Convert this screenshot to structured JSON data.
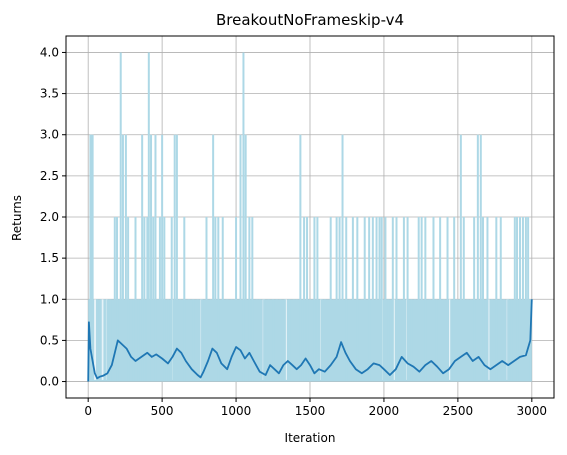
{
  "chart_data": {
    "type": "line",
    "title": "BreakoutNoFrameskip-v4",
    "xlabel": "Iteration",
    "ylabel": "Returns",
    "xlim": [
      -150,
      3150
    ],
    "ylim": [
      -0.2,
      4.2
    ],
    "xticks": [
      0,
      500,
      1000,
      1500,
      2000,
      2500,
      3000
    ],
    "yticks": [
      0.0,
      0.5,
      1.0,
      1.5,
      2.0,
      2.5,
      3.0,
      3.5,
      4.0
    ],
    "xtick_labels": [
      "0",
      "500",
      "1000",
      "1500",
      "2000",
      "2500",
      "3000"
    ],
    "ytick_labels": [
      "0.0",
      "0.5",
      "1.0",
      "1.5",
      "2.0",
      "2.5",
      "3.0",
      "3.5",
      "4.0"
    ],
    "grid": true,
    "colors": {
      "raw": "#add8e6",
      "smooth": "#1f77b4"
    },
    "raw_spikes": [
      [
        15,
        3
      ],
      [
        20,
        3
      ],
      [
        30,
        3
      ],
      [
        60,
        1
      ],
      [
        85,
        1
      ],
      [
        110,
        1
      ],
      [
        130,
        1
      ],
      [
        150,
        1
      ],
      [
        180,
        2
      ],
      [
        195,
        2
      ],
      [
        210,
        1
      ],
      [
        220,
        4
      ],
      [
        235,
        3
      ],
      [
        255,
        3
      ],
      [
        270,
        2
      ],
      [
        290,
        1
      ],
      [
        305,
        1
      ],
      [
        320,
        2
      ],
      [
        340,
        1
      ],
      [
        365,
        3
      ],
      [
        380,
        2
      ],
      [
        400,
        2
      ],
      [
        410,
        4
      ],
      [
        425,
        3
      ],
      [
        440,
        2
      ],
      [
        455,
        3
      ],
      [
        470,
        1
      ],
      [
        485,
        2
      ],
      [
        500,
        3
      ],
      [
        515,
        2
      ],
      [
        540,
        1
      ],
      [
        565,
        2
      ],
      [
        585,
        3
      ],
      [
        600,
        3
      ],
      [
        620,
        1
      ],
      [
        650,
        2
      ],
      [
        680,
        1
      ],
      [
        710,
        1
      ],
      [
        740,
        1
      ],
      [
        770,
        1
      ],
      [
        800,
        2
      ],
      [
        830,
        1
      ],
      [
        845,
        3
      ],
      [
        860,
        2
      ],
      [
        880,
        2
      ],
      [
        910,
        2
      ],
      [
        940,
        1
      ],
      [
        970,
        1
      ],
      [
        990,
        1
      ],
      [
        1000,
        2
      ],
      [
        1030,
        3
      ],
      [
        1050,
        4
      ],
      [
        1065,
        3
      ],
      [
        1090,
        2
      ],
      [
        1110,
        2
      ],
      [
        1140,
        1
      ],
      [
        1160,
        1
      ],
      [
        1190,
        1
      ],
      [
        1220,
        1
      ],
      [
        1250,
        1
      ],
      [
        1275,
        1
      ],
      [
        1300,
        1
      ],
      [
        1330,
        1
      ],
      [
        1360,
        1
      ],
      [
        1390,
        1
      ],
      [
        1410,
        1
      ],
      [
        1435,
        3
      ],
      [
        1460,
        2
      ],
      [
        1480,
        2
      ],
      [
        1500,
        1
      ],
      [
        1530,
        2
      ],
      [
        1550,
        2
      ],
      [
        1580,
        1
      ],
      [
        1600,
        1
      ],
      [
        1640,
        2
      ],
      [
        1660,
        1
      ],
      [
        1680,
        2
      ],
      [
        1700,
        2
      ],
      [
        1720,
        3
      ],
      [
        1745,
        2
      ],
      [
        1770,
        1
      ],
      [
        1790,
        2
      ],
      [
        1820,
        2
      ],
      [
        1850,
        1
      ],
      [
        1870,
        2
      ],
      [
        1900,
        2
      ],
      [
        1925,
        2
      ],
      [
        1950,
        2
      ],
      [
        1970,
        2
      ],
      [
        1985,
        2
      ],
      [
        2010,
        2
      ],
      [
        2030,
        1
      ],
      [
        2060,
        2
      ],
      [
        2085,
        2
      ],
      [
        2110,
        1
      ],
      [
        2135,
        2
      ],
      [
        2160,
        2
      ],
      [
        2185,
        1
      ],
      [
        2210,
        1
      ],
      [
        2235,
        2
      ],
      [
        2255,
        2
      ],
      [
        2280,
        2
      ],
      [
        2310,
        1
      ],
      [
        2335,
        2
      ],
      [
        2355,
        1
      ],
      [
        2380,
        2
      ],
      [
        2405,
        1
      ],
      [
        2430,
        2
      ],
      [
        2455,
        1
      ],
      [
        2475,
        2
      ],
      [
        2495,
        1
      ],
      [
        2520,
        3
      ],
      [
        2540,
        2
      ],
      [
        2565,
        1
      ],
      [
        2590,
        1
      ],
      [
        2610,
        2
      ],
      [
        2635,
        3
      ],
      [
        2655,
        3
      ],
      [
        2670,
        2
      ],
      [
        2700,
        2
      ],
      [
        2730,
        1
      ],
      [
        2760,
        2
      ],
      [
        2790,
        2
      ],
      [
        2810,
        1
      ],
      [
        2840,
        1
      ],
      [
        2860,
        1
      ],
      [
        2885,
        2
      ],
      [
        2900,
        2
      ],
      [
        2920,
        2
      ],
      [
        2940,
        2
      ],
      [
        2960,
        2
      ],
      [
        2975,
        2
      ],
      [
        2990,
        1
      ]
    ],
    "smooth_points": [
      [
        0,
        0.0
      ],
      [
        5,
        0.72
      ],
      [
        15,
        0.4
      ],
      [
        30,
        0.25
      ],
      [
        45,
        0.1
      ],
      [
        60,
        0.04
      ],
      [
        80,
        0.06
      ],
      [
        100,
        0.07
      ],
      [
        130,
        0.1
      ],
      [
        160,
        0.2
      ],
      [
        180,
        0.35
      ],
      [
        200,
        0.5
      ],
      [
        230,
        0.45
      ],
      [
        260,
        0.4
      ],
      [
        290,
        0.3
      ],
      [
        320,
        0.25
      ],
      [
        360,
        0.3
      ],
      [
        400,
        0.35
      ],
      [
        430,
        0.3
      ],
      [
        460,
        0.33
      ],
      [
        500,
        0.28
      ],
      [
        540,
        0.22
      ],
      [
        570,
        0.3
      ],
      [
        600,
        0.4
      ],
      [
        630,
        0.35
      ],
      [
        660,
        0.25
      ],
      [
        700,
        0.15
      ],
      [
        740,
        0.08
      ],
      [
        760,
        0.05
      ],
      [
        780,
        0.12
      ],
      [
        810,
        0.25
      ],
      [
        840,
        0.4
      ],
      [
        870,
        0.35
      ],
      [
        900,
        0.22
      ],
      [
        940,
        0.15
      ],
      [
        970,
        0.3
      ],
      [
        1000,
        0.42
      ],
      [
        1030,
        0.38
      ],
      [
        1060,
        0.28
      ],
      [
        1090,
        0.35
      ],
      [
        1120,
        0.25
      ],
      [
        1160,
        0.12
      ],
      [
        1200,
        0.08
      ],
      [
        1230,
        0.2
      ],
      [
        1260,
        0.15
      ],
      [
        1290,
        0.1
      ],
      [
        1320,
        0.2
      ],
      [
        1350,
        0.25
      ],
      [
        1380,
        0.2
      ],
      [
        1410,
        0.15
      ],
      [
        1440,
        0.2
      ],
      [
        1470,
        0.28
      ],
      [
        1500,
        0.2
      ],
      [
        1530,
        0.1
      ],
      [
        1560,
        0.15
      ],
      [
        1600,
        0.12
      ],
      [
        1640,
        0.2
      ],
      [
        1680,
        0.3
      ],
      [
        1710,
        0.48
      ],
      [
        1740,
        0.35
      ],
      [
        1770,
        0.25
      ],
      [
        1810,
        0.15
      ],
      [
        1850,
        0.1
      ],
      [
        1890,
        0.15
      ],
      [
        1930,
        0.22
      ],
      [
        1970,
        0.2
      ],
      [
        2000,
        0.15
      ],
      [
        2040,
        0.08
      ],
      [
        2080,
        0.15
      ],
      [
        2120,
        0.3
      ],
      [
        2160,
        0.22
      ],
      [
        2200,
        0.18
      ],
      [
        2240,
        0.12
      ],
      [
        2280,
        0.2
      ],
      [
        2320,
        0.25
      ],
      [
        2360,
        0.18
      ],
      [
        2400,
        0.1
      ],
      [
        2440,
        0.15
      ],
      [
        2480,
        0.25
      ],
      [
        2520,
        0.3
      ],
      [
        2560,
        0.35
      ],
      [
        2600,
        0.25
      ],
      [
        2640,
        0.3
      ],
      [
        2680,
        0.2
      ],
      [
        2720,
        0.15
      ],
      [
        2760,
        0.2
      ],
      [
        2800,
        0.25
      ],
      [
        2840,
        0.2
      ],
      [
        2880,
        0.25
      ],
      [
        2920,
        0.3
      ],
      [
        2960,
        0.32
      ],
      [
        2990,
        0.5
      ],
      [
        3000,
        1.0
      ]
    ]
  }
}
